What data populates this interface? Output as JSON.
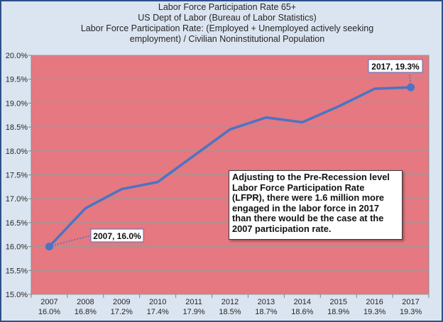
{
  "chart_data": {
    "type": "line",
    "title": "Labor Force Participation Rate 65+",
    "subtitle_lines": [
      "US Dept of Labor (Bureau of Labor Statistics)",
      "Labor Force Participation Rate: (Employed + Unemployed actively seeking",
      "employment) / Civilian Noninstitutional Population"
    ],
    "categories": [
      "2007",
      "2008",
      "2009",
      "2010",
      "2011",
      "2012",
      "2013",
      "2014",
      "2015",
      "2016",
      "2017"
    ],
    "category_value_labels": [
      "16.0%",
      "16.8%",
      "17.2%",
      "17.4%",
      "17.9%",
      "18.5%",
      "18.7%",
      "18.6%",
      "18.9%",
      "19.3%",
      "19.3%"
    ],
    "series": [
      {
        "values": [
          16.0,
          16.8,
          17.2,
          17.35,
          17.9,
          18.45,
          18.7,
          18.6,
          18.93,
          19.3,
          19.33
        ]
      }
    ],
    "ylim": [
      15.0,
      20.0
    ],
    "yticks": [
      "15.0%",
      "15.5%",
      "16.0%",
      "16.5%",
      "17.0%",
      "17.5%",
      "18.0%",
      "18.5%",
      "19.0%",
      "19.5%",
      "20.0%"
    ],
    "xlabel": "",
    "ylabel": "",
    "grid": true,
    "annotations": {
      "start_label": "2007, 16.0%",
      "end_label": "2017, 19.3%",
      "callout": "Adjusting to the Pre-Recession level Labor Force Participation Rate (LFPR), there were 1.6 million more engaged in the labor force in 2017 than there would be the case at the 2007 participation rate."
    },
    "colors": {
      "plot_background": "#e57880",
      "line": "#4a74c4",
      "marker": "#4a74c4",
      "chart_background": "#dbe5f1",
      "border": "#2e4f8a"
    }
  }
}
